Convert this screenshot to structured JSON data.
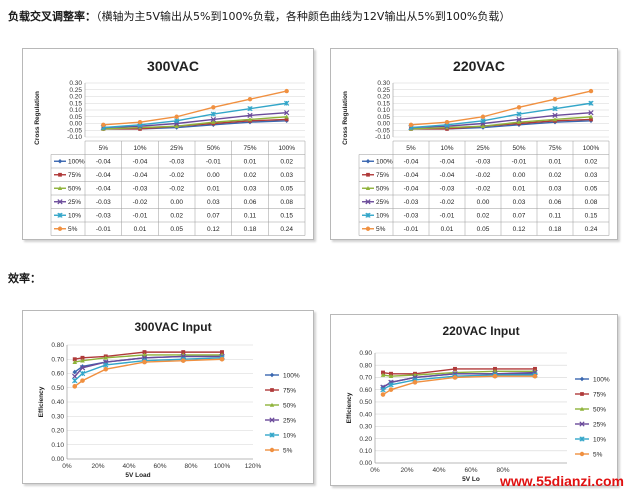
{
  "headings": {
    "regulation": "负载交叉调整率：",
    "regulation_note": "（横轴为主5V输出从5%到100%负载，各种颜色曲线为12V输出从5%到100%负载）",
    "efficiency": "效率："
  },
  "watermark": "www.55dianzi.com",
  "colors": {
    "100%": "#3a67b0",
    "75%": "#b03a3a",
    "50%": "#8fb33a",
    "25%": "#6a4a9a",
    "10%": "#33a6c9",
    "5%": "#f09040"
  },
  "chart_data": [
    {
      "type": "line",
      "title": "300VAC",
      "ylabel": "Cross Regulation",
      "xlabel": "",
      "categories": [
        "5%",
        "10%",
        "25%",
        "50%",
        "75%",
        "100%"
      ],
      "ylim": [
        -0.1,
        0.3
      ],
      "yticks": [
        "0.30",
        "0.25",
        "0.20",
        "0.15",
        "0.10",
        "0.05",
        "0.00",
        "-0.05",
        "-0.10"
      ],
      "series": [
        {
          "name": "100%",
          "values": [
            -0.04,
            -0.04,
            -0.03,
            -0.01,
            0.01,
            0.02
          ],
          "labels": [
            "-0.04",
            "-0.04",
            "-0.03",
            "-0.01",
            "0.01",
            "0.02"
          ]
        },
        {
          "name": "75%",
          "values": [
            -0.04,
            -0.04,
            -0.02,
            0.0,
            0.02,
            0.03
          ],
          "labels": [
            "-0.04",
            "-0.04",
            "-0.02",
            "0.00",
            "0.02",
            "0.03"
          ]
        },
        {
          "name": "50%",
          "values": [
            -0.04,
            -0.03,
            -0.02,
            0.01,
            0.03,
            0.05
          ],
          "labels": [
            "-0.04",
            "-0.03",
            "-0.02",
            "0.01",
            "0.03",
            "0.05"
          ]
        },
        {
          "name": "25%",
          "values": [
            -0.03,
            -0.02,
            0.0,
            0.03,
            0.06,
            0.08
          ],
          "labels": [
            "-0.03",
            "-0.02",
            "0.00",
            "0.03",
            "0.06",
            "0.08"
          ]
        },
        {
          "name": "10%",
          "values": [
            -0.03,
            -0.01,
            0.02,
            0.07,
            0.11,
            0.15
          ],
          "labels": [
            "-0.03",
            "-0.01",
            "0.02",
            "0.07",
            "0.11",
            "0.15"
          ]
        },
        {
          "name": "5%",
          "values": [
            -0.01,
            0.01,
            0.05,
            0.12,
            0.18,
            0.24
          ],
          "labels": [
            "-0.01",
            "0.01",
            "0.05",
            "0.12",
            "0.18",
            "0.24"
          ]
        }
      ]
    },
    {
      "type": "line",
      "title": "220VAC",
      "ylabel": "Cross Regulation",
      "xlabel": "",
      "categories": [
        "5%",
        "10%",
        "25%",
        "50%",
        "75%",
        "100%"
      ],
      "ylim": [
        -0.1,
        0.3
      ],
      "yticks": [
        "0.30",
        "0.25",
        "0.20",
        "0.15",
        "0.10",
        "0.05",
        "0.00",
        "-0.05",
        "-0.10"
      ],
      "series": [
        {
          "name": "100%",
          "values": [
            -0.04,
            -0.04,
            -0.03,
            -0.01,
            0.01,
            0.02
          ],
          "labels": [
            "-0.04",
            "-0.04",
            "-0.03",
            "-0.01",
            "0.01",
            "0.02"
          ]
        },
        {
          "name": "75%",
          "values": [
            -0.04,
            -0.04,
            -0.02,
            0.0,
            0.02,
            0.03
          ],
          "labels": [
            "-0.04",
            "-0.04",
            "-0.02",
            "0.00",
            "0.02",
            "0.03"
          ]
        },
        {
          "name": "50%",
          "values": [
            -0.04,
            -0.03,
            -0.02,
            0.01,
            0.03,
            0.05
          ],
          "labels": [
            "-0.04",
            "-0.03",
            "-0.02",
            "0.01",
            "0.03",
            "0.05"
          ]
        },
        {
          "name": "25%",
          "values": [
            -0.03,
            -0.02,
            0.0,
            0.03,
            0.06,
            0.08
          ],
          "labels": [
            "-0.03",
            "-0.02",
            "0.00",
            "0.03",
            "0.06",
            "0.08"
          ]
        },
        {
          "name": "10%",
          "values": [
            -0.03,
            -0.01,
            0.02,
            0.07,
            0.11,
            0.15
          ],
          "labels": [
            "-0.03",
            "-0.01",
            "0.02",
            "0.07",
            "0.11",
            "0.15"
          ]
        },
        {
          "name": "5%",
          "values": [
            -0.01,
            0.01,
            0.05,
            0.12,
            0.18,
            0.24
          ],
          "labels": [
            "-0.01",
            "0.01",
            "0.05",
            "0.12",
            "0.18",
            "0.24"
          ]
        }
      ]
    },
    {
      "type": "line",
      "title": "300VAC Input",
      "ylabel": "Efficiency",
      "xlabel": "5V Load",
      "xlim": [
        0,
        1.2
      ],
      "xticks": [
        "0%",
        "20%",
        "40%",
        "60%",
        "80%",
        "100%",
        "120%"
      ],
      "ylim": [
        0,
        0.8
      ],
      "yticks": [
        "0.80",
        "0.70",
        "0.60",
        "0.50",
        "0.40",
        "0.30",
        "0.20",
        "0.10",
        "0.00"
      ],
      "legend": "right",
      "x": [
        0.05,
        0.1,
        0.25,
        0.5,
        0.75,
        1.0
      ],
      "series": [
        {
          "name": "100%",
          "values": [
            0.61,
            0.65,
            0.68,
            0.71,
            0.72,
            0.72
          ]
        },
        {
          "name": "75%",
          "values": [
            0.7,
            0.71,
            0.72,
            0.75,
            0.75,
            0.75
          ]
        },
        {
          "name": "50%",
          "values": [
            0.68,
            0.69,
            0.71,
            0.73,
            0.73,
            0.73
          ]
        },
        {
          "name": "25%",
          "values": [
            0.58,
            0.64,
            0.68,
            0.71,
            0.72,
            0.72
          ]
        },
        {
          "name": "10%",
          "values": [
            0.55,
            0.6,
            0.66,
            0.69,
            0.7,
            0.71
          ]
        },
        {
          "name": "5%",
          "values": [
            0.51,
            0.55,
            0.63,
            0.68,
            0.69,
            0.7
          ]
        }
      ]
    },
    {
      "type": "line",
      "title": "220VAC Input",
      "ylabel": "Efficiency",
      "xlabel": "5V Lo",
      "xlim": [
        0,
        1.2
      ],
      "xticks": [
        "0%",
        "20%",
        "40%",
        "60%",
        "80%"
      ],
      "ylim": [
        0,
        0.9
      ],
      "yticks": [
        "0.90",
        "0.80",
        "0.70",
        "0.60",
        "0.50",
        "0.40",
        "0.30",
        "0.20",
        "0.10",
        "0.00"
      ],
      "legend": "right",
      "x": [
        0.05,
        0.1,
        0.25,
        0.5,
        0.75,
        1.0
      ],
      "series": [
        {
          "name": "100%",
          "values": [
            0.62,
            0.66,
            0.7,
            0.73,
            0.73,
            0.73
          ]
        },
        {
          "name": "75%",
          "values": [
            0.74,
            0.73,
            0.73,
            0.77,
            0.77,
            0.77
          ]
        },
        {
          "name": "50%",
          "values": [
            0.72,
            0.71,
            0.72,
            0.74,
            0.75,
            0.75
          ]
        },
        {
          "name": "25%",
          "values": [
            0.62,
            0.66,
            0.7,
            0.73,
            0.73,
            0.74
          ]
        },
        {
          "name": "10%",
          "values": [
            0.6,
            0.64,
            0.68,
            0.71,
            0.72,
            0.72
          ]
        },
        {
          "name": "5%",
          "values": [
            0.56,
            0.6,
            0.66,
            0.7,
            0.71,
            0.71
          ]
        }
      ]
    }
  ]
}
